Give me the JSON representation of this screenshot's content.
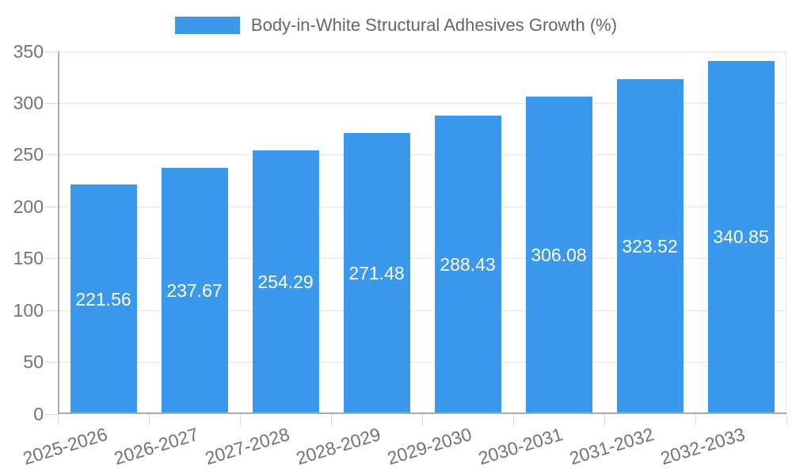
{
  "chart_data": {
    "type": "bar",
    "title": "Body-in-White Structural Adhesives Growth (%)",
    "legend": {
      "label": "Body-in-White Structural Adhesives Growth (%)",
      "position": "top-center"
    },
    "categories": [
      "2025-2026",
      "2026-2027",
      "2027-2028",
      "2028-2029",
      "2029-2030",
      "2030-2031",
      "2031-2032",
      "2032-2033"
    ],
    "values": [
      221.56,
      237.67,
      254.29,
      271.48,
      288.43,
      306.08,
      323.52,
      340.85
    ],
    "value_labels": [
      "221.56",
      "237.67",
      "254.29",
      "271.48",
      "288.43",
      "306.08",
      "323.52",
      "340.85"
    ],
    "xlabel": "",
    "ylabel": "",
    "ylim": [
      0,
      350
    ],
    "yticks": [
      0,
      50,
      100,
      150,
      200,
      250,
      300,
      350
    ],
    "grid": true,
    "legend_position": "top",
    "colors": {
      "bar": "#3A99EC",
      "grid": "#E6E6E6",
      "tick_mark": "#D9D9D9",
      "axis": "#ABABAB",
      "tick_text": "#737373",
      "legend_text": "#666666",
      "value_label": "#FFFFFF",
      "background": "#FFFFFF"
    }
  }
}
